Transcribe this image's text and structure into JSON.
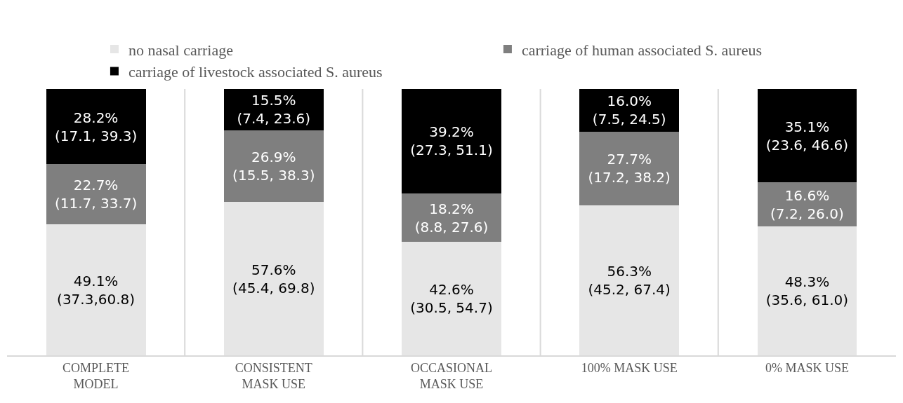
{
  "chart_data": {
    "type": "bar",
    "stacked": true,
    "categories": [
      "COMPLETE MODEL",
      "CONSISTENT MASK USE",
      "OCCASIONAL MASK USE",
      "100% MASK USE",
      "0% MASK USE"
    ],
    "series": [
      {
        "name": "no nasal carriage",
        "color": "#e6e6e6",
        "values": [
          49.1,
          57.6,
          42.6,
          56.3,
          48.3
        ],
        "value_labels": [
          "49.1%\n(37.3,60.8)",
          "57.6%\n(45.4, 69.8)",
          "42.6%\n(30.5, 54.7)",
          "56.3%\n(45.2, 67.4)",
          "48.3%\n(35.6, 61.0)"
        ]
      },
      {
        "name": "carriage of human associated S. aureus",
        "color": "#7f7f7f",
        "values": [
          22.7,
          26.9,
          18.2,
          27.7,
          16.6
        ],
        "value_labels": [
          "22.7%\n(11.7, 33.7)",
          "26.9%\n(15.5, 38.3)",
          "18.2%\n(8.8, 27.6)",
          "27.7%\n(17.2, 38.2)",
          "16.6%\n(7.2, 26.0)"
        ]
      },
      {
        "name": "carriage of livestock associated S. aureus",
        "color": "#000000",
        "values": [
          28.2,
          15.5,
          39.2,
          16.0,
          35.1
        ],
        "value_labels": [
          "28.2%\n(17.1, 39.3)",
          "15.5%\n(7.4, 23.6)",
          "39.2%\n(27.3, 51.1)",
          "16.0%\n(7.5, 24.5)",
          "35.1%\n(23.6, 46.6)"
        ]
      }
    ],
    "ylim": [
      0,
      100
    ],
    "tick_labels": "x",
    "grid": "x",
    "legend": "top"
  }
}
